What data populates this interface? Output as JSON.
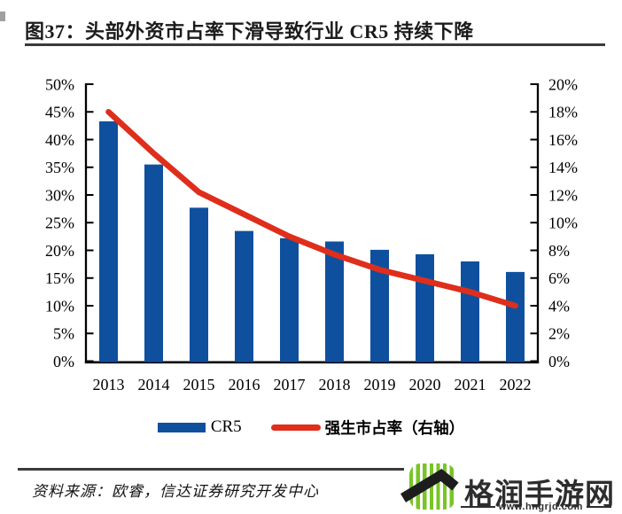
{
  "header": {
    "title": "图37：头部外资市占率下滑导致行业 CR5 持续下降"
  },
  "chart_data": {
    "type": "combo",
    "categories": [
      "2013",
      "2014",
      "2015",
      "2016",
      "2017",
      "2018",
      "2019",
      "2020",
      "2021",
      "2022"
    ],
    "series": [
      {
        "name": "CR5",
        "type": "bar",
        "axis": "left",
        "color": "#0f509e",
        "values": [
          43.3,
          35.5,
          27.7,
          23.5,
          22.2,
          21.6,
          20.1,
          19.3,
          18.0,
          16.1
        ]
      },
      {
        "name": "强生市占率（右轴）",
        "type": "line",
        "axis": "right",
        "color": "#df2e1b",
        "values": [
          18.0,
          15.0,
          12.2,
          10.6,
          9.0,
          7.7,
          6.6,
          5.8,
          5.0,
          4.0
        ]
      }
    ],
    "left_axis": {
      "min": 0,
      "max": 50,
      "step": 5,
      "tick_labels": [
        "0%",
        "5%",
        "10%",
        "15%",
        "20%",
        "25%",
        "30%",
        "35%",
        "40%",
        "45%",
        "50%"
      ]
    },
    "right_axis": {
      "min": 0,
      "max": 20,
      "step": 2,
      "tick_labels": [
        "0%",
        "2%",
        "4%",
        "6%",
        "8%",
        "10%",
        "12%",
        "14%",
        "16%",
        "18%",
        "20%"
      ]
    },
    "grid": false,
    "legend_position": "bottom",
    "title": "头部外资市占率下滑导致行业 CR5 持续下降"
  },
  "footer": {
    "source": "资料来源：欧睿，信达证券研究开发中心",
    "brand": {
      "name": "格润手游网",
      "url": "www.hngrjd.com"
    }
  },
  "colors": {
    "rule": "#3b3b3b",
    "brand_green": "#79c427",
    "brand_text": "#2d2d2d"
  }
}
